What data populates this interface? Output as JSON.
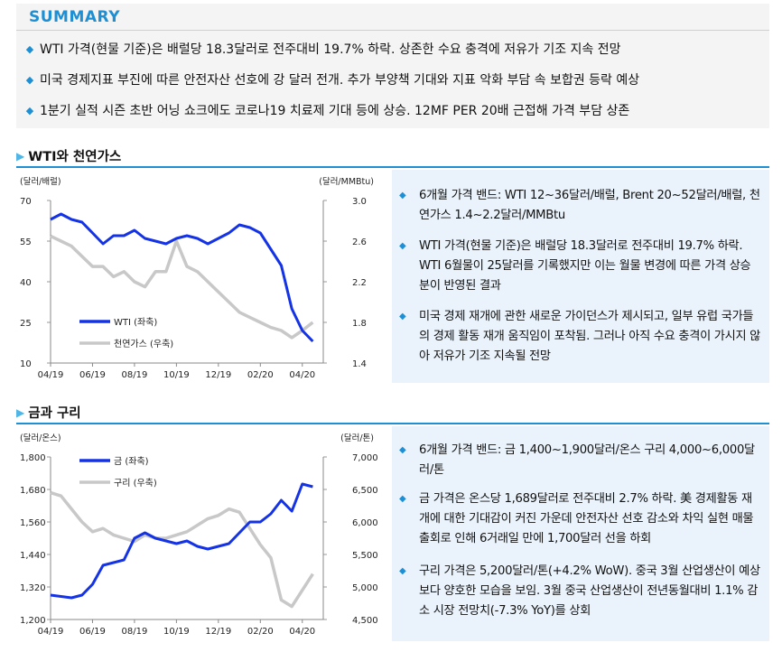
{
  "summary": {
    "title": "SUMMARY",
    "items": [
      "WTI 가격(현물 기준)은 배럴당 18.3달러로 전주대비 19.7% 하락. 상존한 수요 충격에 저유가 기조 지속 전망",
      "미국 경제지표 부진에 따른 안전자산 선호에 강 달러 전개. 추가 부양책 기대와 지표 악화 부담 속 보합권 등락 예상",
      "1분기 실적 시즌 초반 어닝 쇼크에도 코로나19 치료제 기대 등에 상승. 12MF PER 20배 근접해 가격 부담 상존"
    ]
  },
  "sections": {
    "oil_title": "WTI와 천연가스",
    "gold_title": "금과 구리"
  },
  "panels": {
    "oil": [
      "6개월 가격 밴드: WTI 12~36달러/배럴, Brent 20~52달러/배럴, 천연가스 1.4~2.2달러/MMBtu",
      "WTI 가격(현물 기준)은 배럴당 18.3달러로 전주대비 19.7% 하락. WTI 6월물이 25달러를 기록했지만 이는 월물 변경에 따른 가격 상승분이 반영된 결과",
      "미국 경제 재개에 관한 새로운 가이던스가 제시되고, 일부 유럽 국가들의 경제 활동 재개 움직임이 포착됨. 그러나 아직 수요 충격이 가시지 않아 저유가 기조 지속될 전망"
    ],
    "gold": [
      "6개월 가격 밴드: 금 1,400~1,900달러/온스 구리 4,000~6,000달러/톤",
      "금 가격은 온스당 1,689달러로 전주대비 2.7% 하락. 美 경제활동 재개에 대한 기대감이 커진 가운데 안전자산 선호 감소와 차익 실현 매물 출회로 인해 6거래일 만에 1,700달러 선을 하회",
      "구리 가격은 5,200달러/톤(+4.2% WoW). 중국 3월 산업생산이 예상보다 양호한 모습을 보임. 3월 중국 산업생산이 전년동월대비 1.1% 감소 시장 전망치(-7.3% YoY)를 상회"
    ]
  },
  "chart_data": [
    {
      "type": "line",
      "left_unit": "(달러/배럴)",
      "right_unit": "(달러/MMBtu)",
      "x_ticks": [
        "04/19",
        "06/19",
        "08/19",
        "10/19",
        "12/19",
        "02/20",
        "04/20"
      ],
      "left_ticks": [
        "70",
        "55",
        "40",
        "25",
        "10"
      ],
      "right_ticks": [
        "3.0",
        "2.6",
        "2.2",
        "1.8",
        "1.4"
      ],
      "ylim_left": [
        10,
        70
      ],
      "ylim_right": [
        1.4,
        3.0
      ],
      "legend_position": "bottom-left",
      "x_months": [
        0,
        0.5,
        1,
        1.5,
        2,
        2.5,
        3,
        3.5,
        4,
        4.5,
        5,
        5.5,
        6,
        6.5,
        7,
        7.5,
        8,
        8.5,
        9,
        9.5,
        10,
        10.5,
        11,
        11.5,
        12,
        12.5
      ],
      "series": [
        {
          "name": "WTI (좌축)",
          "axis": "left",
          "color": "#1432e6",
          "values": [
            63,
            65,
            63,
            62,
            58,
            54,
            57,
            57,
            59,
            56,
            55,
            54,
            56,
            57,
            56,
            54,
            56,
            58,
            61,
            60,
            58,
            52,
            46,
            30,
            22,
            18
          ]
        },
        {
          "name": "천연가스 (우축)",
          "axis": "right",
          "color": "#c8c8c8",
          "values": [
            2.65,
            2.6,
            2.55,
            2.45,
            2.35,
            2.35,
            2.25,
            2.3,
            2.2,
            2.15,
            2.3,
            2.3,
            2.6,
            2.35,
            2.3,
            2.2,
            2.1,
            2.0,
            1.9,
            1.85,
            1.8,
            1.75,
            1.72,
            1.65,
            1.72,
            1.8
          ]
        }
      ]
    },
    {
      "type": "line",
      "left_unit": "(달러/온스)",
      "right_unit": "(달러/톤)",
      "x_ticks": [
        "04/19",
        "06/19",
        "08/19",
        "10/19",
        "12/19",
        "02/20",
        "04/20"
      ],
      "left_ticks": [
        "1,800",
        "1,680",
        "1,560",
        "1,440",
        "1,320",
        "1,200"
      ],
      "right_ticks": [
        "7,000",
        "6,500",
        "6,000",
        "5,500",
        "5,000",
        "4,500"
      ],
      "ylim_left": [
        1200,
        1800
      ],
      "ylim_right": [
        4500,
        7000
      ],
      "legend_position": "top-left",
      "x_months": [
        0,
        0.5,
        1,
        1.5,
        2,
        2.5,
        3,
        3.5,
        4,
        4.5,
        5,
        5.5,
        6,
        6.5,
        7,
        7.5,
        8,
        8.5,
        9,
        9.5,
        10,
        10.5,
        11,
        11.5,
        12,
        12.5
      ],
      "series": [
        {
          "name": "금 (좌축)",
          "axis": "left",
          "color": "#1432e6",
          "values": [
            1290,
            1285,
            1280,
            1290,
            1330,
            1400,
            1410,
            1420,
            1500,
            1520,
            1500,
            1490,
            1480,
            1490,
            1470,
            1460,
            1470,
            1480,
            1520,
            1560,
            1560,
            1590,
            1640,
            1600,
            1700,
            1690
          ]
        },
        {
          "name": "구리 (우축)",
          "axis": "right",
          "color": "#c8c8c8",
          "values": [
            6450,
            6400,
            6200,
            6000,
            5850,
            5900,
            5800,
            5750,
            5700,
            5800,
            5750,
            5750,
            5800,
            5850,
            5950,
            6050,
            6100,
            6200,
            6150,
            5900,
            5650,
            5450,
            4800,
            4700,
            4950,
            5200
          ]
        }
      ]
    }
  ]
}
